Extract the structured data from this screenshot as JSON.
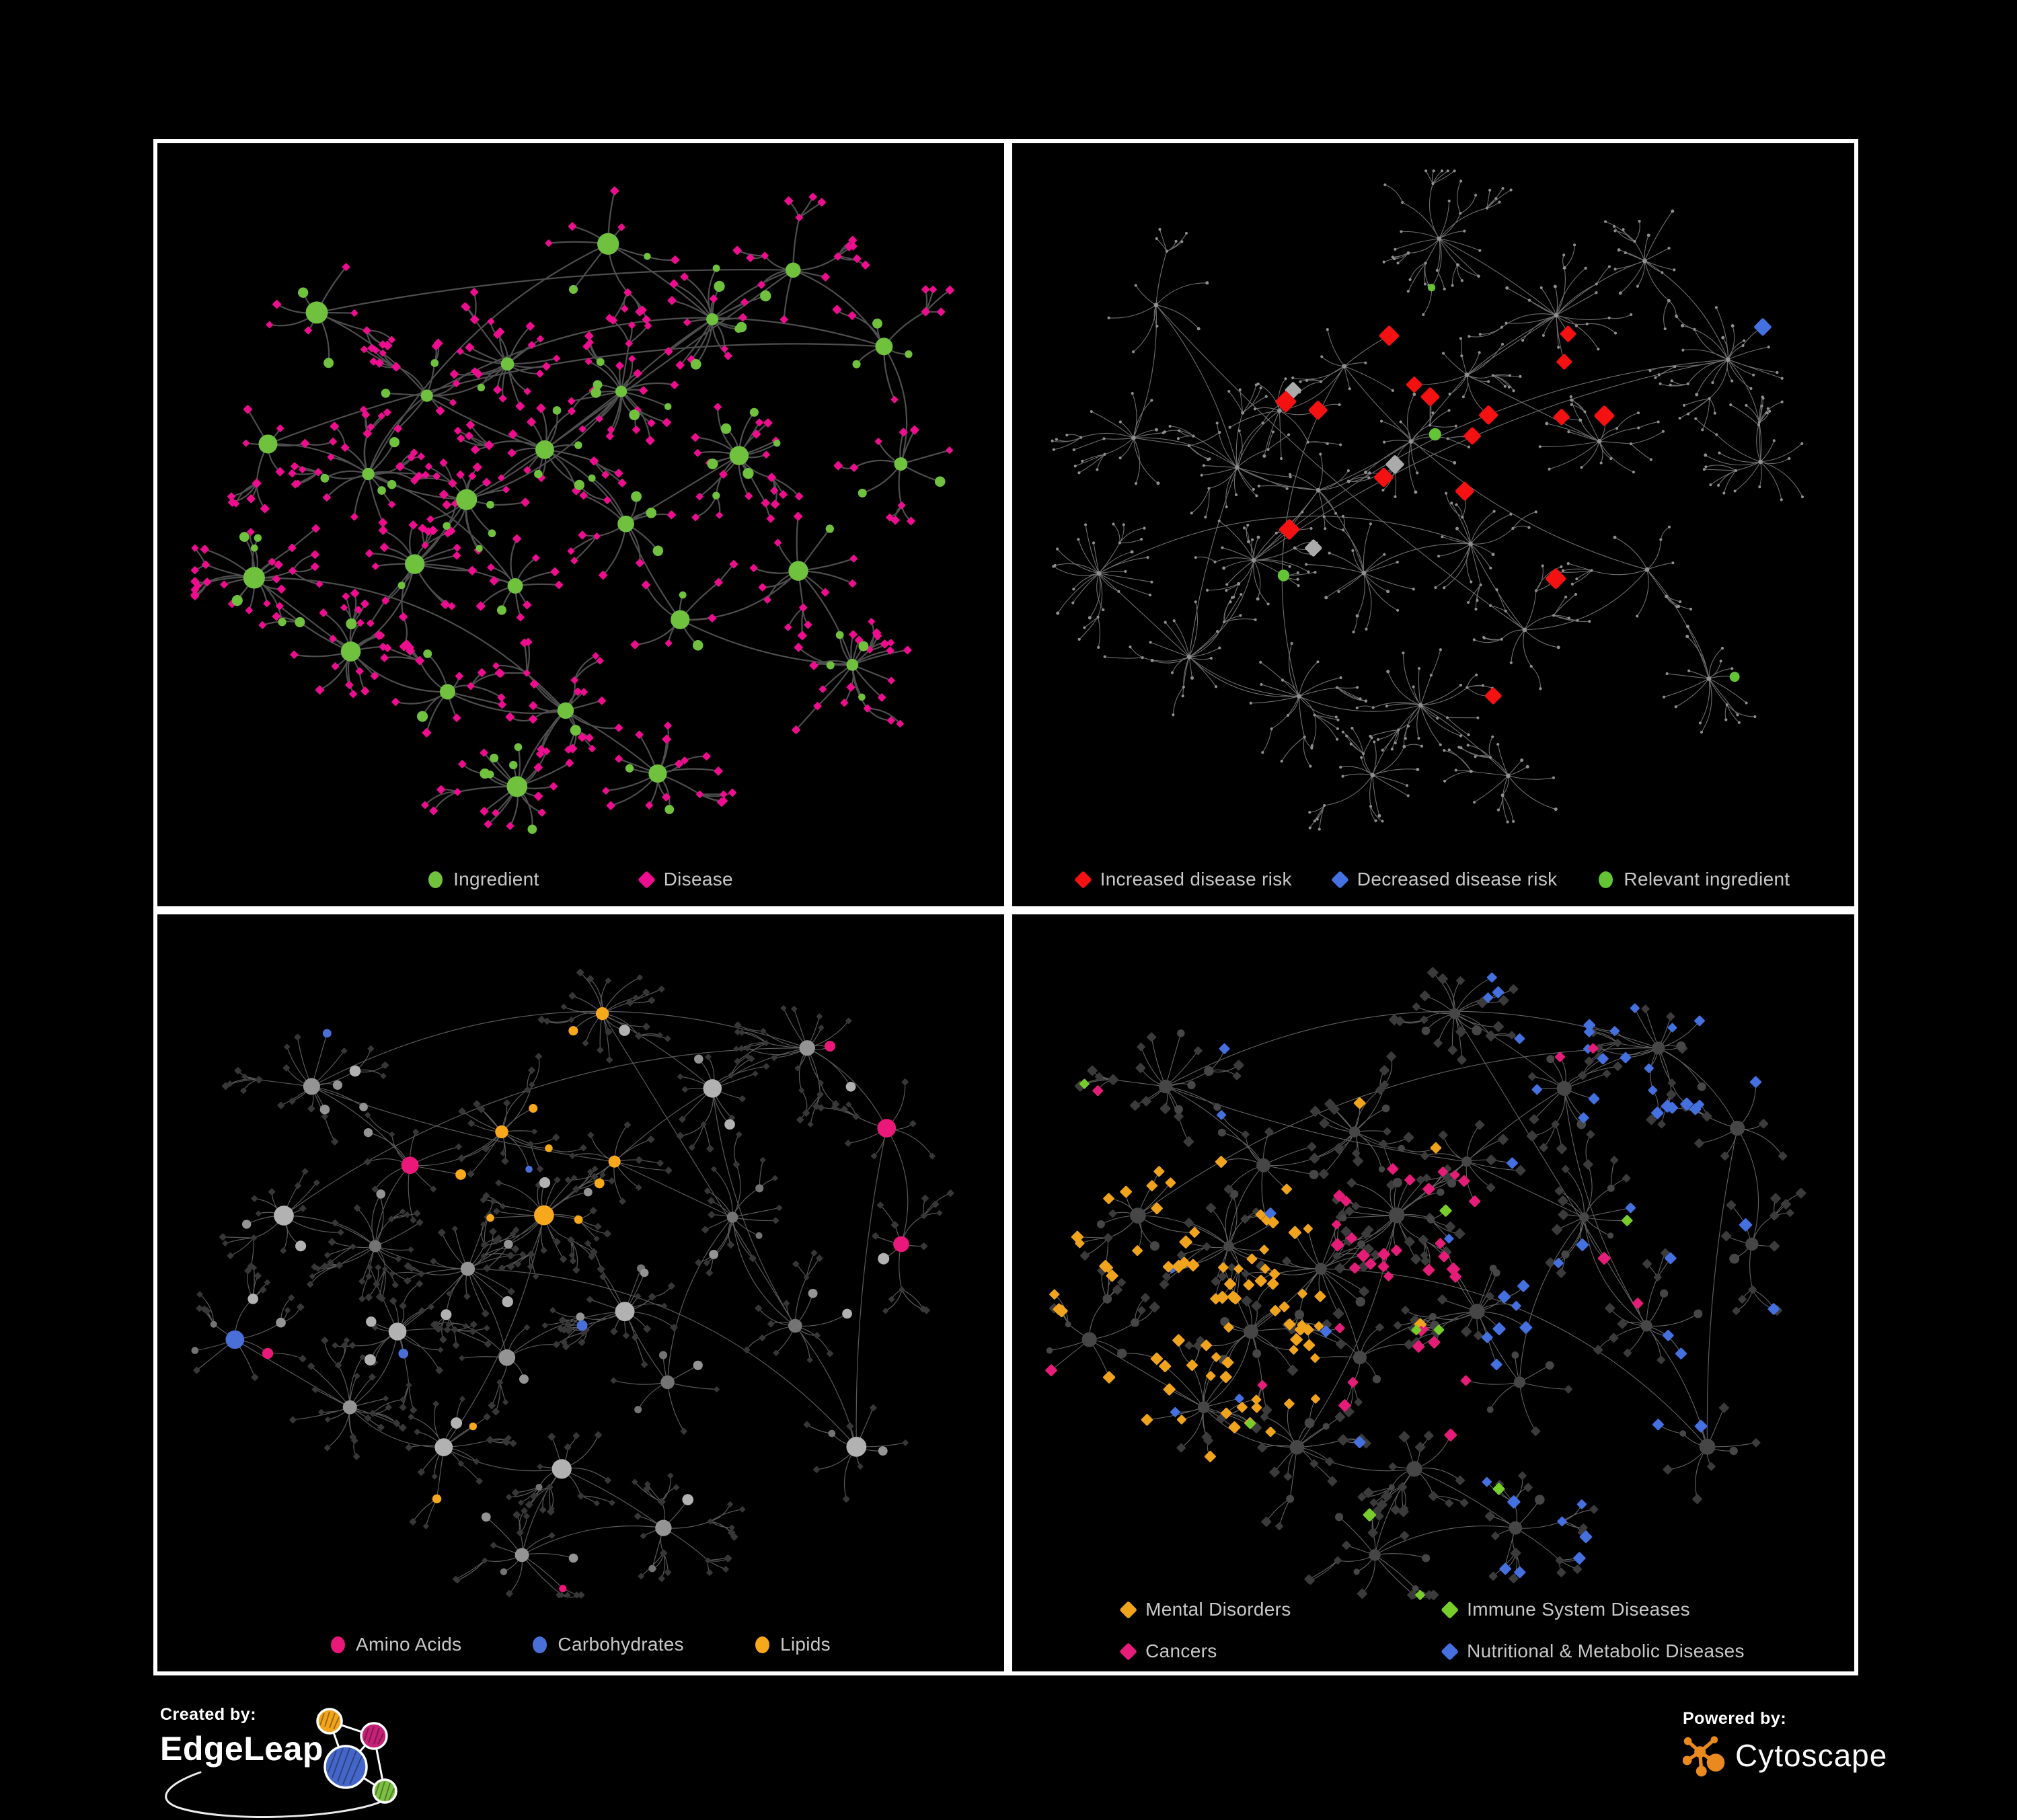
{
  "panels": [
    {
      "id": "ingredient-disease",
      "legend": [
        {
          "label": "Ingredient",
          "shape": "circle",
          "color": "#6FC13E"
        },
        {
          "label": "Disease",
          "shape": "diamond",
          "color": "#EC0E8E"
        }
      ]
    },
    {
      "id": "disease-risk",
      "legend": [
        {
          "label": "Increased disease risk",
          "shape": "diamond",
          "color": "#F31111"
        },
        {
          "label": "Decreased disease risk",
          "shape": "diamond",
          "color": "#4472E2"
        },
        {
          "label": "Relevant ingredient",
          "shape": "circle",
          "color": "#63C436"
        }
      ]
    },
    {
      "id": "nutrient-classes",
      "legend": [
        {
          "label": "Amino Acids",
          "shape": "circle",
          "color": "#EA1878"
        },
        {
          "label": "Carbohydrates",
          "shape": "circle",
          "color": "#4A6FD8"
        },
        {
          "label": "Lipids",
          "shape": "circle",
          "color": "#F7A81B"
        }
      ]
    },
    {
      "id": "disease-classes",
      "legend": [
        {
          "label": "Mental Disorders",
          "shape": "diamond",
          "color": "#F0A41E"
        },
        {
          "label": "Immune System Diseases",
          "shape": "diamond",
          "color": "#77CE2A"
        },
        {
          "label": "Cancers",
          "shape": "diamond",
          "color": "#E61D78"
        },
        {
          "label": "Nutritional & Metabolic Diseases",
          "shape": "diamond",
          "color": "#4470E0"
        }
      ]
    }
  ],
  "footer": {
    "created_by": "Created by:",
    "edgeleap": "EdgeLeap",
    "powered_by": "Powered by:",
    "cytoscape": "Cytoscape",
    "edgeleap_colors": {
      "orange": "#F2A41C",
      "magenta": "#C52277",
      "blue": "#4466C8",
      "green": "#7CC043"
    },
    "cytoscape_orange": "#E9891E"
  },
  "network": {
    "background": "#000000",
    "seeds": [
      3,
      5,
      7,
      7
    ],
    "gen": {
      "leafMin": 6,
      "leafMax": 20,
      "midProb": 0.22,
      "subhubProb": 0.14,
      "subLeafMin": 2,
      "subLeafMax": 6,
      "extraHubLinks": 10
    },
    "clusters": [
      [
        0.3,
        0.36
      ],
      [
        0.4,
        0.3
      ],
      [
        0.24,
        0.46
      ],
      [
        0.35,
        0.5
      ],
      [
        0.46,
        0.42
      ],
      [
        0.55,
        0.33
      ],
      [
        0.28,
        0.6
      ],
      [
        0.42,
        0.62
      ],
      [
        0.55,
        0.55
      ],
      [
        0.2,
        0.72
      ],
      [
        0.33,
        0.78
      ],
      [
        0.48,
        0.8
      ],
      [
        0.42,
        0.92
      ],
      [
        0.62,
        0.68
      ],
      [
        0.7,
        0.42
      ],
      [
        0.66,
        0.22
      ],
      [
        0.78,
        0.16
      ],
      [
        0.88,
        0.28
      ],
      [
        0.9,
        0.45
      ],
      [
        0.76,
        0.6
      ],
      [
        0.12,
        0.42
      ],
      [
        0.16,
        0.22
      ],
      [
        0.52,
        0.12
      ],
      [
        0.08,
        0.62
      ],
      [
        0.6,
        0.9
      ],
      [
        0.84,
        0.75
      ]
    ],
    "styles": [
      {
        "edgeColor": "#4E4E4E",
        "edgeWidth": 2.2,
        "ingredient": "#6FC13E",
        "disease": "#EC0E8E"
      },
      {
        "edgeColor": "#6E6E6E",
        "edgeWidth": 1.1,
        "baseDot": "#8F8F8F",
        "increased": "#F31111",
        "decreased": "#4472E2",
        "neutral": "#ABABAB",
        "relevant": "#63C436"
      },
      {
        "edgeColor": "#5A5A5A",
        "edgeWidth": 1.2,
        "dimDisease": "#373737",
        "grays": [
          "#747474",
          "#949494",
          "#B2B2B2"
        ],
        "amino": "#EA1878",
        "carb": "#4A6FD8",
        "lipid": "#F7A81B"
      },
      {
        "edgeColor": "#636363",
        "edgeWidth": 1.1,
        "dimDisease": "#3B3B3B",
        "dimIngredient": "#464646",
        "mental": "#F0A41E",
        "immune": "#77CE2A",
        "cancer": "#E61D78",
        "nutri": "#4470E0"
      }
    ]
  }
}
